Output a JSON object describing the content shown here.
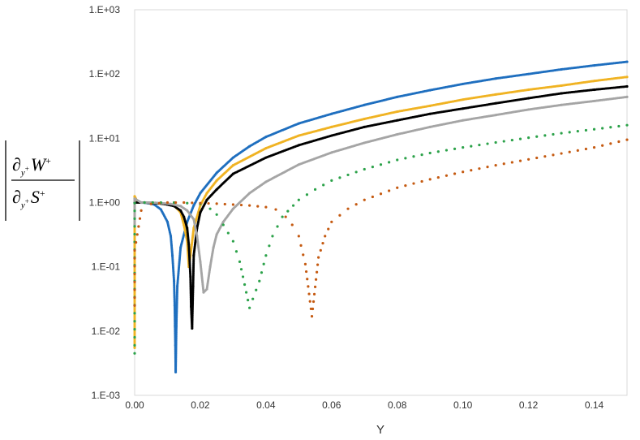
{
  "chart_data": {
    "type": "scatter",
    "xlabel": "Y",
    "ylabel": "|∂y+ W+ / ∂y+ S+|",
    "ylabel_parts": {
      "partial": "∂",
      "sub": "y",
      "sup_plus": "+",
      "num_var": "W",
      "den_var": "S"
    },
    "xlim": [
      0,
      0.15
    ],
    "ylim": [
      0.001,
      1000
    ],
    "yscale": "log",
    "grid": false,
    "legend": "none",
    "x_ticks": [
      "0.00",
      "0.02",
      "0.04",
      "0.06",
      "0.08",
      "0.10",
      "0.12",
      "0.14"
    ],
    "x_tick_values": [
      0,
      0.02,
      0.04,
      0.06,
      0.08,
      0.1,
      0.12,
      0.14
    ],
    "y_ticks": [
      "1.E-03",
      "1.E-02",
      "1.E-01",
      "1.E+00",
      "1.E+01",
      "1.E+02",
      "1.E+03"
    ],
    "y_tick_values": [
      0.001,
      0.01,
      0.1,
      1,
      10,
      100,
      1000
    ],
    "series": [
      {
        "color": "#1f6fbf",
        "points": [
          [
            0.0,
            1.0
          ],
          [
            0.002,
            1.0
          ],
          [
            0.004,
            0.98
          ],
          [
            0.006,
            0.93
          ],
          [
            0.008,
            0.78
          ],
          [
            0.01,
            0.5
          ],
          [
            0.011,
            0.3
          ],
          [
            0.0115,
            0.15
          ],
          [
            0.012,
            0.06
          ],
          [
            0.0122,
            0.025
          ],
          [
            0.0123,
            0.012
          ],
          [
            0.0124,
            0.006
          ],
          [
            0.0125,
            0.0023
          ],
          [
            0.0127,
            0.012
          ],
          [
            0.013,
            0.05
          ],
          [
            0.014,
            0.2
          ],
          [
            0.016,
            0.5
          ],
          [
            0.018,
            0.9
          ],
          [
            0.02,
            1.4
          ],
          [
            0.025,
            2.9
          ],
          [
            0.03,
            5.0
          ],
          [
            0.035,
            7.5
          ],
          [
            0.04,
            10.5
          ],
          [
            0.05,
            17
          ],
          [
            0.06,
            24
          ],
          [
            0.07,
            33
          ],
          [
            0.08,
            44
          ],
          [
            0.09,
            56
          ],
          [
            0.1,
            70
          ],
          [
            0.11,
            85
          ],
          [
            0.12,
            100
          ],
          [
            0.13,
            118
          ],
          [
            0.14,
            136
          ],
          [
            0.15,
            155
          ]
        ]
      },
      {
        "color": "#f0b323",
        "points": [
          [
            0.0,
            0.0055
          ],
          [
            0.0,
            0.08
          ],
          [
            0.0,
            1.25
          ],
          [
            0.001,
            1.0
          ],
          [
            0.003,
            1.0
          ],
          [
            0.006,
            0.98
          ],
          [
            0.009,
            0.95
          ],
          [
            0.012,
            0.9
          ],
          [
            0.014,
            0.7
          ],
          [
            0.015,
            0.45
          ],
          [
            0.016,
            0.25
          ],
          [
            0.0165,
            0.1
          ],
          [
            0.017,
            0.15
          ],
          [
            0.018,
            0.4
          ],
          [
            0.02,
            0.9
          ],
          [
            0.022,
            1.4
          ],
          [
            0.025,
            2.2
          ],
          [
            0.03,
            3.8
          ],
          [
            0.04,
            7.0
          ],
          [
            0.05,
            11
          ],
          [
            0.06,
            15
          ],
          [
            0.07,
            20
          ],
          [
            0.08,
            26
          ],
          [
            0.09,
            32
          ],
          [
            0.1,
            40
          ],
          [
            0.11,
            48
          ],
          [
            0.12,
            57
          ],
          [
            0.13,
            66
          ],
          [
            0.14,
            78
          ],
          [
            0.15,
            90
          ]
        ]
      },
      {
        "color": "#000000",
        "points": [
          [
            0.0,
            1.0
          ],
          [
            0.003,
            1.0
          ],
          [
            0.006,
            0.98
          ],
          [
            0.009,
            0.95
          ],
          [
            0.012,
            0.88
          ],
          [
            0.014,
            0.75
          ],
          [
            0.015,
            0.6
          ],
          [
            0.016,
            0.4
          ],
          [
            0.0165,
            0.22
          ],
          [
            0.017,
            0.07
          ],
          [
            0.0172,
            0.024
          ],
          [
            0.0175,
            0.011
          ],
          [
            0.0178,
            0.05
          ],
          [
            0.018,
            0.15
          ],
          [
            0.019,
            0.4
          ],
          [
            0.02,
            0.7
          ],
          [
            0.022,
            1.1
          ],
          [
            0.025,
            1.6
          ],
          [
            0.03,
            2.8
          ],
          [
            0.04,
            5.0
          ],
          [
            0.05,
            7.8
          ],
          [
            0.06,
            11
          ],
          [
            0.07,
            15
          ],
          [
            0.08,
            19
          ],
          [
            0.09,
            24
          ],
          [
            0.1,
            29
          ],
          [
            0.11,
            35
          ],
          [
            0.12,
            42
          ],
          [
            0.13,
            50
          ],
          [
            0.14,
            57
          ],
          [
            0.15,
            64
          ]
        ]
      },
      {
        "color": "#a5a5a5",
        "points": [
          [
            0.0,
            0.45
          ],
          [
            0.0,
            1.15
          ],
          [
            0.002,
            1.0
          ],
          [
            0.005,
            1.0
          ],
          [
            0.008,
            0.98
          ],
          [
            0.011,
            0.95
          ],
          [
            0.014,
            0.88
          ],
          [
            0.016,
            0.75
          ],
          [
            0.018,
            0.55
          ],
          [
            0.019,
            0.3
          ],
          [
            0.02,
            0.12
          ],
          [
            0.021,
            0.04
          ],
          [
            0.022,
            0.045
          ],
          [
            0.023,
            0.1
          ],
          [
            0.024,
            0.2
          ],
          [
            0.025,
            0.32
          ],
          [
            0.027,
            0.5
          ],
          [
            0.03,
            0.8
          ],
          [
            0.035,
            1.4
          ],
          [
            0.04,
            2.1
          ],
          [
            0.05,
            3.9
          ],
          [
            0.06,
            6.0
          ],
          [
            0.07,
            8.5
          ],
          [
            0.08,
            11.5
          ],
          [
            0.09,
            15
          ],
          [
            0.1,
            19
          ],
          [
            0.11,
            23
          ],
          [
            0.12,
            28
          ],
          [
            0.13,
            33
          ],
          [
            0.14,
            38
          ],
          [
            0.15,
            44
          ]
        ]
      },
      {
        "color": "#2ca24a",
        "points": [
          [
            0.0,
            0.0045
          ],
          [
            0.0,
            0.08
          ],
          [
            0.0,
            0.98
          ],
          [
            0.003,
            1.0
          ],
          [
            0.008,
            1.0
          ],
          [
            0.012,
            1.0
          ],
          [
            0.016,
            0.98
          ],
          [
            0.02,
            0.95
          ],
          [
            0.023,
            0.8
          ],
          [
            0.025,
            0.65
          ],
          [
            0.027,
            0.45
          ],
          [
            0.03,
            0.25
          ],
          [
            0.032,
            0.12
          ],
          [
            0.033,
            0.07
          ],
          [
            0.035,
            0.023
          ],
          [
            0.038,
            0.06
          ],
          [
            0.04,
            0.15
          ],
          [
            0.042,
            0.3
          ],
          [
            0.045,
            0.6
          ],
          [
            0.05,
            1.1
          ],
          [
            0.055,
            1.6
          ],
          [
            0.06,
            2.2
          ],
          [
            0.07,
            3.3
          ],
          [
            0.08,
            4.6
          ],
          [
            0.09,
            5.9
          ],
          [
            0.1,
            7.2
          ],
          [
            0.11,
            8.6
          ],
          [
            0.12,
            10.2
          ],
          [
            0.13,
            12
          ],
          [
            0.14,
            13.8
          ],
          [
            0.15,
            16
          ]
        ]
      },
      {
        "color": "#c55a11",
        "points": [
          [
            0.0,
            0.025
          ],
          [
            0.0,
            0.18
          ],
          [
            0.002,
            0.75
          ],
          [
            0.005,
            0.95
          ],
          [
            0.01,
            1.0
          ],
          [
            0.015,
            1.0
          ],
          [
            0.02,
            0.98
          ],
          [
            0.025,
            0.96
          ],
          [
            0.03,
            0.93
          ],
          [
            0.035,
            0.9
          ],
          [
            0.04,
            0.85
          ],
          [
            0.043,
            0.78
          ],
          [
            0.046,
            0.6
          ],
          [
            0.048,
            0.45
          ],
          [
            0.05,
            0.3
          ],
          [
            0.052,
            0.11
          ],
          [
            0.054,
            0.017
          ],
          [
            0.056,
            0.14
          ],
          [
            0.058,
            0.3
          ],
          [
            0.06,
            0.5
          ],
          [
            0.065,
            0.8
          ],
          [
            0.07,
            1.1
          ],
          [
            0.08,
            1.7
          ],
          [
            0.09,
            2.3
          ],
          [
            0.1,
            3.0
          ],
          [
            0.11,
            3.8
          ],
          [
            0.12,
            4.7
          ],
          [
            0.13,
            5.8
          ],
          [
            0.14,
            7.2
          ],
          [
            0.15,
            9.5
          ]
        ]
      }
    ]
  }
}
